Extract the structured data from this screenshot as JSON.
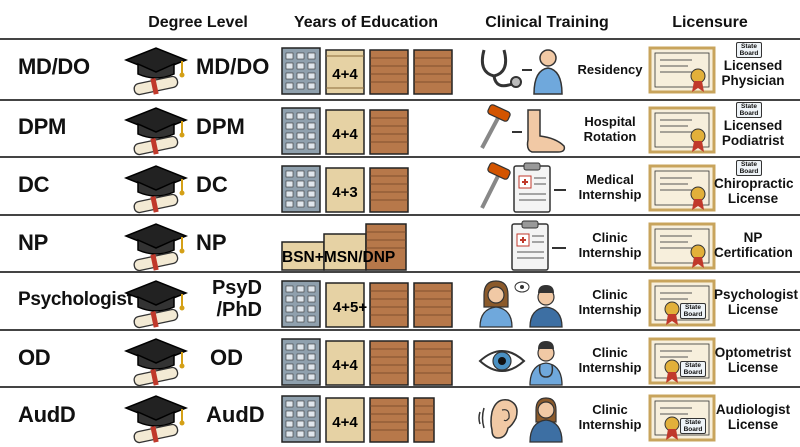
{
  "headers": {
    "degree_level": "Degree Level",
    "years_of_education": "Years of Education",
    "clinical_training": "Clinical Training",
    "licensure": "Licensure"
  },
  "rows": [
    {
      "profession": "MD/DO",
      "degree": "MD/DO",
      "years": "4+4",
      "training": "Residency",
      "license": "Licensed Physician",
      "board": "State Board"
    },
    {
      "profession": "DPM",
      "degree": "DPM",
      "years": "4+4",
      "training": "Hospital Rotation",
      "license": "Licensed Podiatrist",
      "board": "State Board"
    },
    {
      "profession": "DC",
      "degree": "DC",
      "years": "4+3",
      "training": "Medical Internship",
      "license": "Chiropractic License",
      "board": "State Board"
    },
    {
      "profession": "NP",
      "degree": "NP",
      "years": "BSN+MSN/DNP",
      "training": "Clinic Internship",
      "license": "NP Certification",
      "board": ""
    },
    {
      "profession": "Psychologist",
      "degree": "PsyD /PhD",
      "years": "4+5+",
      "training": "Clinic Internship",
      "license": "Psychologist License",
      "board": "State Board"
    },
    {
      "profession": "OD",
      "degree": "OD",
      "years": "4+4",
      "training": "Clinic Internship",
      "license": "Optometrist License",
      "board": "State Board"
    },
    {
      "profession": "AudD",
      "degree": "AudD",
      "years": "4+4",
      "training": "Clinic Internship",
      "license": "Audiologist License",
      "board": "State Board"
    }
  ],
  "icons": {
    "degree": "graduation-cap-icon",
    "education": "building-icon",
    "license": "certificate-icon"
  },
  "colors": {
    "building_gray": "#8fa0ad",
    "crate_tan": "#e6d2a4",
    "crate_brown": "#b7784a",
    "certificate_frame": "#c8a45c",
    "ribbon_red": "#c0392b"
  }
}
